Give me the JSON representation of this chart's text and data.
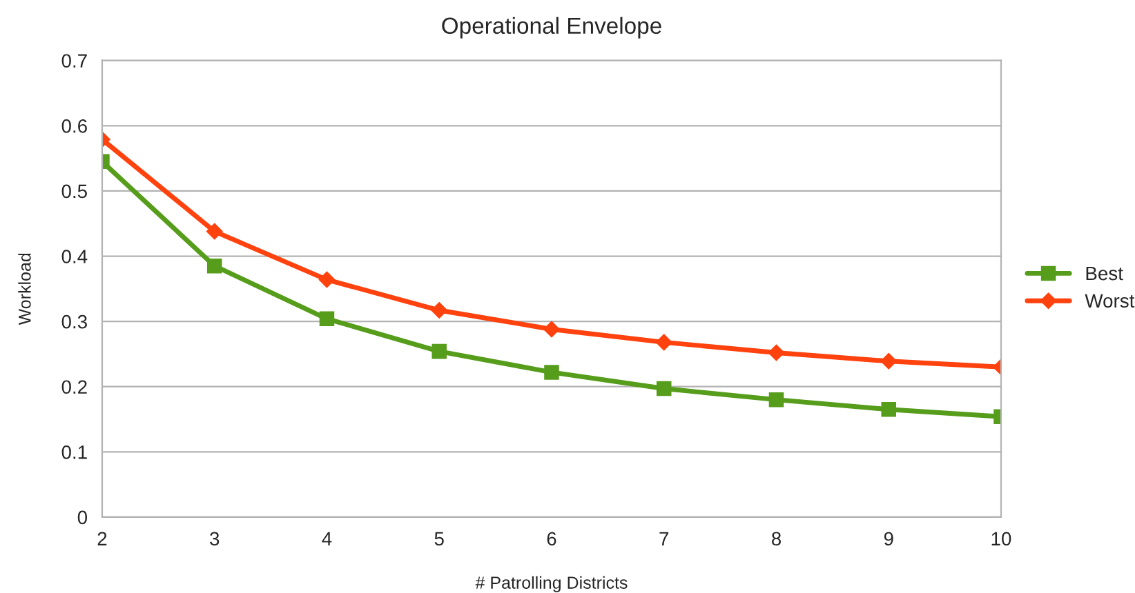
{
  "chart_data": {
    "type": "line",
    "title": "Operational Envelope",
    "xlabel": "# Patrolling Districts",
    "ylabel": "Workload",
    "x": [
      2,
      3,
      4,
      5,
      6,
      7,
      8,
      9,
      10
    ],
    "series": [
      {
        "name": "Best",
        "color": "#579d1c",
        "marker": "square",
        "values": [
          0.545,
          0.385,
          0.304,
          0.254,
          0.222,
          0.197,
          0.18,
          0.165,
          0.154
        ]
      },
      {
        "name": "Worst",
        "color": "#ff420e",
        "marker": "diamond",
        "values": [
          0.579,
          0.438,
          0.364,
          0.317,
          0.288,
          0.268,
          0.252,
          0.239,
          0.23
        ]
      }
    ],
    "xlim": [
      2,
      10
    ],
    "xticks": [
      2,
      3,
      4,
      5,
      6,
      7,
      8,
      9,
      10
    ],
    "ylim": [
      0,
      0.7
    ],
    "yticks": [
      0,
      0.1,
      0.2,
      0.3,
      0.4,
      0.5,
      0.6,
      0.7
    ],
    "grid": "y",
    "legend": "right",
    "line_style": "solid"
  }
}
